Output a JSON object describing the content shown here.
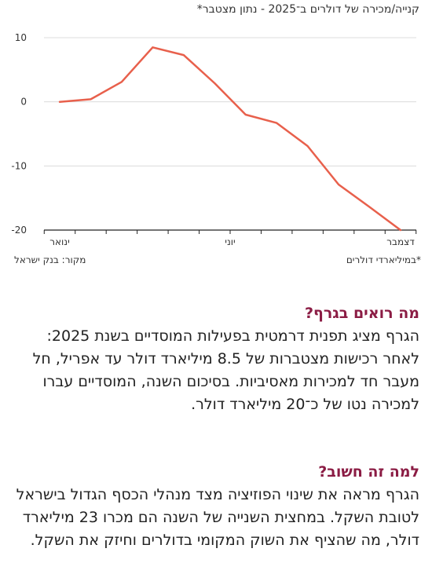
{
  "chart_data": {
    "type": "line",
    "title": "קנייה/מכירה של דולרים ב־2025 - נתון מצטבר*",
    "x": [
      1,
      2,
      3,
      4,
      5,
      6,
      7,
      8,
      9,
      10,
      11,
      12
    ],
    "x_tick_labels": [
      {
        "x": 1,
        "label": "ינואר"
      },
      {
        "x": 6.5,
        "label": "יוני"
      },
      {
        "x": 12,
        "label": "דצמבר"
      }
    ],
    "series": [
      {
        "values": [
          0,
          0.4,
          3.1,
          8.5,
          7.3,
          2.9,
          -2.0,
          -3.3,
          -6.9,
          -12.9,
          -16.4,
          -20.0
        ],
        "color": "#e8604c"
      }
    ],
    "ylim": [
      -20,
      10
    ],
    "y_ticks": [
      10,
      0,
      -10,
      -20
    ],
    "grid": true,
    "footnote_unit": "*במיליארדי דולרים",
    "source": "מקור: בנק ישראל"
  },
  "text": {
    "q1_heading": "מה רואים בגרף?",
    "q1_body": "הגרף מציג תפנית דרמטית בפעילות המוסדיים בשנת 2025: לאחר רכישות מצטברות של 8.5 מיליארד דולר עד אפריל, חל מעבר חד למכירות מאסיביות. בסיכום השנה, המוסדיים עברו למכירה נטו של כ־20 מיליארד דולר.",
    "q2_heading": "למה זה חשוב?",
    "q2_body": "הגרף מראה את שינוי הפוזיציה מצד מנהלי הכסף הגדול בישראל לטובת השקל. במחצית השנייה של השנה הם מכרו 23 מיליארד דולר, מה שהציף את השוק המקומי בדולרים וחיזק את השקל."
  }
}
